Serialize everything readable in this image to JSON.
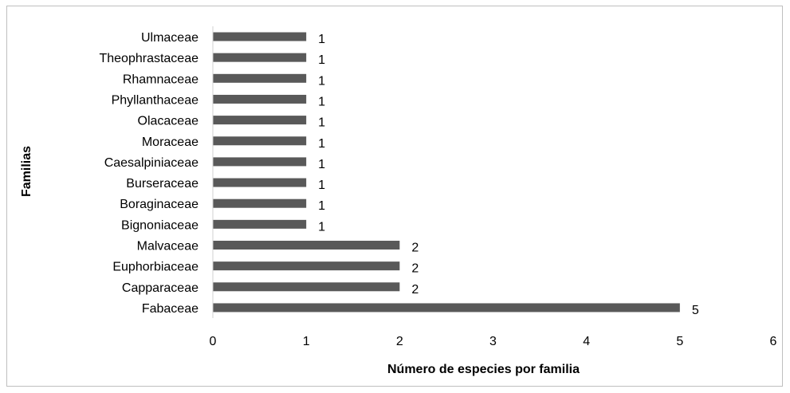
{
  "chart_data": {
    "type": "bar",
    "orientation": "horizontal",
    "categories": [
      "Ulmaceae",
      "Theophrastaceae",
      "Rhamnaceae",
      "Phyllanthaceae",
      "Olacaceae",
      "Moraceae",
      "Caesalpiniaceae",
      "Burseraceae",
      "Boraginaceae",
      "Bignoniaceae",
      "Malvaceae",
      "Euphorbiaceae",
      "Capparaceae",
      "Fabaceae"
    ],
    "values": [
      1,
      1,
      1,
      1,
      1,
      1,
      1,
      1,
      1,
      1,
      2,
      2,
      2,
      5
    ],
    "data_labels": [
      "1",
      "1",
      "1",
      "1",
      "1",
      "1",
      "1",
      "1",
      "1",
      "1",
      "2",
      "2",
      "2",
      "5"
    ],
    "title": "",
    "xlabel": "Número de especies por familia",
    "ylabel": "Familias",
    "xlim": [
      0,
      6
    ],
    "xticks": [
      "0",
      "1",
      "2",
      "3",
      "4",
      "5",
      "6"
    ],
    "grid": false,
    "legend": "none",
    "bar_color": "#595959"
  }
}
